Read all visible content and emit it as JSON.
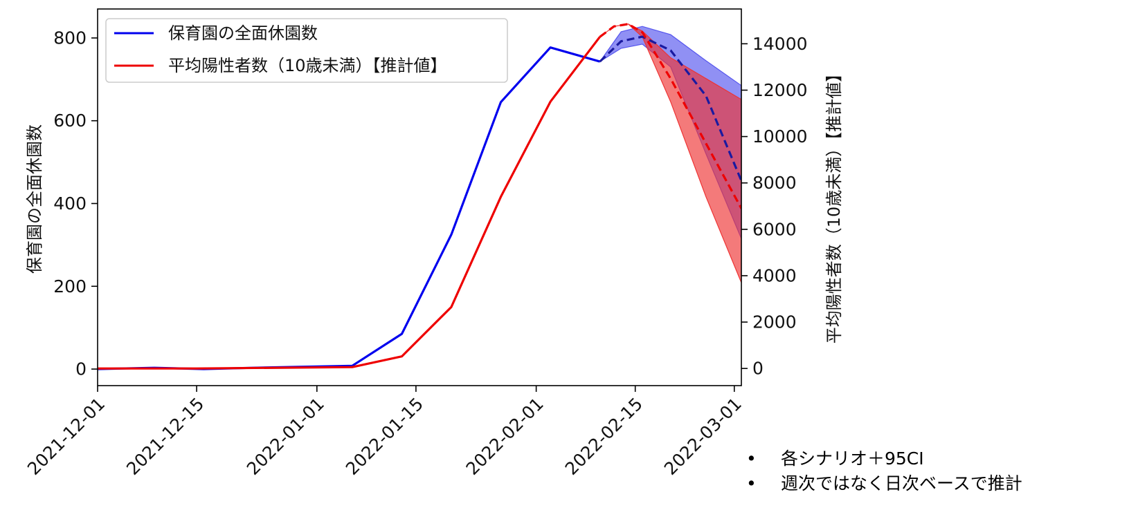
{
  "chart_data": {
    "type": "line",
    "x_type": "date",
    "xlim": [
      "2021-12-01",
      "2022-03-02"
    ],
    "x_ticks": [
      "2021-12-01",
      "2021-12-15",
      "2022-01-01",
      "2022-01-15",
      "2022-02-01",
      "2022-02-15",
      "2022-03-01"
    ],
    "ylabel_left": "保育園の全面休園数",
    "ylabel_right": "平均陽性者数（10歳未満）【推計値】",
    "ylim_left": [
      -40,
      870
    ],
    "ylim_right": [
      -740,
      15500
    ],
    "yticks_left": [
      0,
      200,
      400,
      600,
      800
    ],
    "yticks_right": [
      0,
      2000,
      4000,
      6000,
      8000,
      10000,
      12000,
      14000
    ],
    "legend_position": "upper-left",
    "grid": false,
    "series": [
      {
        "name": "保育園の全面休園数",
        "axis": "left",
        "color": "#0000ee",
        "x": [
          "2021-12-01",
          "2021-12-09",
          "2021-12-16",
          "2021-12-23",
          "2022-01-06",
          "2022-01-13",
          "2022-01-20",
          "2022-01-27",
          "2022-02-03",
          "2022-02-10"
        ],
        "y": [
          0,
          3,
          0,
          3,
          8,
          85,
          325,
          645,
          777,
          743
        ]
      },
      {
        "name": "平均陽性者数（10歳未満）【推計値】",
        "axis": "right",
        "color": "#ee0000",
        "x": [
          "2021-12-01",
          "2021-12-15",
          "2022-01-06",
          "2022-01-13",
          "2022-01-20",
          "2022-01-27",
          "2022-02-03",
          "2022-02-10"
        ],
        "y": [
          0,
          0,
          60,
          520,
          2650,
          7400,
          11500,
          14300
        ]
      }
    ],
    "projections": [
      {
        "axis": "left",
        "color": "#1a1aa0",
        "style": "dashed",
        "x": [
          "2022-02-10",
          "2022-02-13",
          "2022-02-16",
          "2022-02-20",
          "2022-02-25",
          "2022-03-02"
        ],
        "y": [
          743,
          792,
          803,
          770,
          660,
          455
        ],
        "band_color": "#5555ee",
        "band_low": [
          743,
          775,
          785,
          730,
          520,
          315
        ],
        "band_high": [
          743,
          815,
          828,
          808,
          745,
          685
        ]
      },
      {
        "axis": "right",
        "color": "#ee0000",
        "style": "dashed",
        "x": [
          "2022-02-10",
          "2022-02-12",
          "2022-02-14",
          "2022-02-16",
          "2022-02-20",
          "2022-02-25",
          "2022-03-02"
        ],
        "y": [
          14300,
          14750,
          14850,
          14500,
          12500,
          9700,
          6900
        ],
        "band_color": "#ee3333",
        "band_low": [
          14300,
          14750,
          14850,
          14300,
          11500,
          7400,
          3700
        ],
        "band_high": [
          14300,
          14750,
          14850,
          14550,
          13400,
          12500,
          11600
        ]
      }
    ]
  },
  "notes": {
    "bullet": "•",
    "items": [
      "各シナリオ＋95CI",
      "週次ではなく日次ベースで推計"
    ]
  }
}
